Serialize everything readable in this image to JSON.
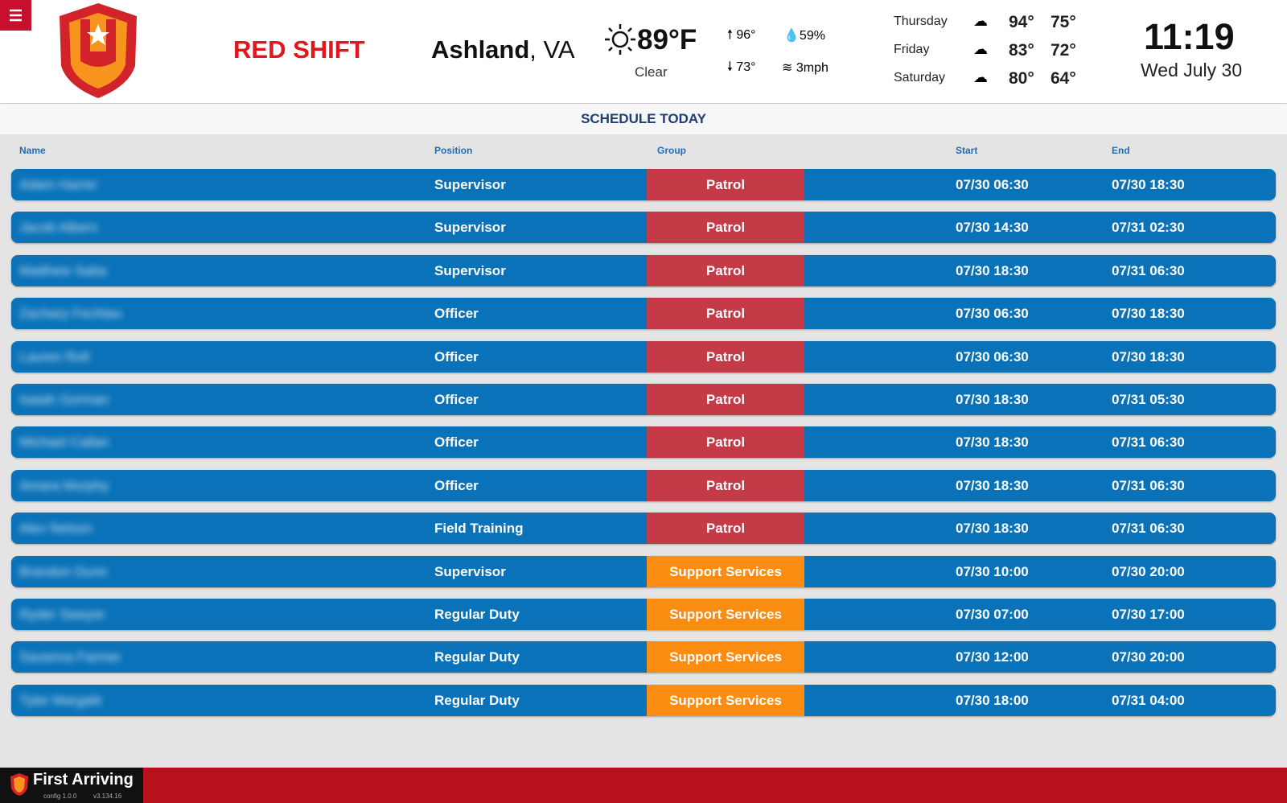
{
  "header": {
    "brand": "RED SHIFT",
    "location_city": "Ashland",
    "location_rest": ", VA",
    "weather": {
      "temp": "89°F",
      "condition": "Clear",
      "high": "96°",
      "low": "73°",
      "humidity": "59%",
      "wind": "3mph"
    },
    "forecast": [
      {
        "day": "Thursday",
        "high": "94°",
        "low": "75°"
      },
      {
        "day": "Friday",
        "high": "83°",
        "low": "72°"
      },
      {
        "day": "Saturday",
        "high": "80°",
        "low": "64°"
      }
    ],
    "time": "11:19",
    "date": "Wed July 30"
  },
  "schedule": {
    "title": "SCHEDULE TODAY",
    "columns": [
      "Name",
      "Position",
      "Group",
      "Start",
      "End"
    ],
    "rows": [
      {
        "name": "Adam Harrer",
        "position": "Supervisor",
        "group": "Patrol",
        "group_color": "#c53a47",
        "start": "07/30 06:30",
        "end": "07/30 18:30"
      },
      {
        "name": "Jacob Albers",
        "position": "Supervisor",
        "group": "Patrol",
        "group_color": "#c53a47",
        "start": "07/30 14:30",
        "end": "07/31 02:30"
      },
      {
        "name": "Matthew Saba",
        "position": "Supervisor",
        "group": "Patrol",
        "group_color": "#c53a47",
        "start": "07/30 18:30",
        "end": "07/31 06:30"
      },
      {
        "name": "Zachary Fechtau",
        "position": "Officer",
        "group": "Patrol",
        "group_color": "#c53a47",
        "start": "07/30 06:30",
        "end": "07/30 18:30"
      },
      {
        "name": "Lauren Roll",
        "position": "Officer",
        "group": "Patrol",
        "group_color": "#c53a47",
        "start": "07/30 06:30",
        "end": "07/30 18:30"
      },
      {
        "name": "Isaiah Gorman",
        "position": "Officer",
        "group": "Patrol",
        "group_color": "#c53a47",
        "start": "07/30 18:30",
        "end": "07/31 05:30"
      },
      {
        "name": "Michael Callan",
        "position": "Officer",
        "group": "Patrol",
        "group_color": "#c53a47",
        "start": "07/30 18:30",
        "end": "07/31 06:30"
      },
      {
        "name": "Amara Murphy",
        "position": "Officer",
        "group": "Patrol",
        "group_color": "#c53a47",
        "start": "07/30 18:30",
        "end": "07/31 06:30"
      },
      {
        "name": "Alex Nelson",
        "position": "Field Training",
        "group": "Patrol",
        "group_color": "#c53a47",
        "start": "07/30 18:30",
        "end": "07/31 06:30"
      },
      {
        "name": "Brandon Dunn",
        "position": "Supervisor",
        "group": "Support Services",
        "group_color": "#fb8c12",
        "start": "07/30 10:00",
        "end": "07/30 20:00"
      },
      {
        "name": "Ryder Sawyer",
        "position": "Regular Duty",
        "group": "Support Services",
        "group_color": "#fb8c12",
        "start": "07/30 07:00",
        "end": "07/30 17:00"
      },
      {
        "name": "Savanna Farmer",
        "position": "Regular Duty",
        "group": "Support Services",
        "group_color": "#fb8c12",
        "start": "07/30 12:00",
        "end": "07/30 20:00"
      },
      {
        "name": "Tyler Margalit",
        "position": "Regular Duty",
        "group": "Support Services",
        "group_color": "#fb8c12",
        "start": "07/30 18:00",
        "end": "07/31 04:00"
      }
    ]
  },
  "footer": {
    "brand": "First Arriving",
    "config": "config 1.0.0",
    "version": "v3.134.16"
  }
}
